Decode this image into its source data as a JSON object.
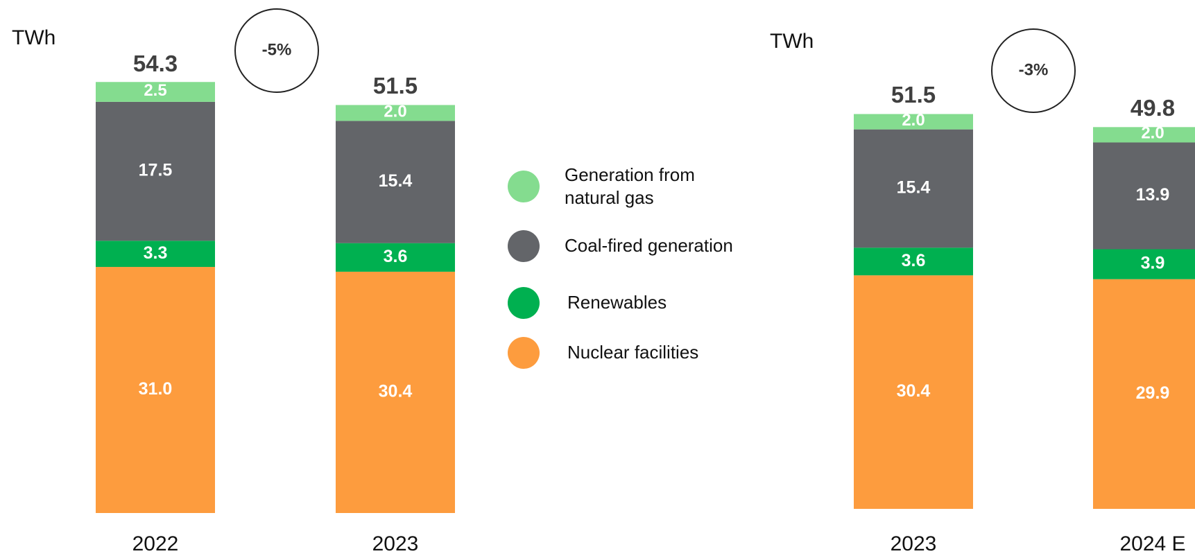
{
  "chart_data": [
    {
      "type": "stacked_bar",
      "unit_label": "TWh",
      "change": "-5%",
      "categories": [
        "2022",
        "2023"
      ],
      "totals": [
        54.3,
        51.5
      ],
      "series": [
        {
          "name": "Generation from natural gas",
          "color": "#84dc8f",
          "values": [
            2.5,
            2.0
          ],
          "value_labels": [
            "2.5",
            "2.0"
          ]
        },
        {
          "name": "Coal-fired generation",
          "color": "#636569",
          "values": [
            17.5,
            15.4
          ],
          "value_labels": [
            "17.5",
            "15.4"
          ]
        },
        {
          "name": "Renewables",
          "color": "#00b050",
          "values": [
            3.3,
            3.6
          ],
          "value_labels": [
            "3.3",
            "3.6"
          ]
        },
        {
          "name": "Nuclear facilities",
          "color": "#fd9c3e",
          "values": [
            31.0,
            30.4
          ],
          "value_labels": [
            "31.0",
            "30.4"
          ]
        }
      ]
    },
    {
      "type": "stacked_bar",
      "unit_label": "TWh",
      "change": "-3%",
      "categories": [
        "2023",
        "2024 E"
      ],
      "totals": [
        51.5,
        49.8
      ],
      "series": [
        {
          "color": "#84dc8f",
          "values": [
            2.0,
            2.0
          ],
          "value_labels": [
            "2.0",
            "2.0"
          ]
        },
        {
          "color": "#636569",
          "values": [
            15.4,
            13.9
          ],
          "value_labels": [
            "15.4",
            "13.9"
          ]
        },
        {
          "color": "#00b050",
          "values": [
            3.6,
            3.9
          ],
          "value_labels": [
            "3.6",
            "3.9"
          ]
        },
        {
          "color": "#fd9c3e",
          "values": [
            30.4,
            29.9
          ],
          "value_labels": [
            "30.4",
            "29.9"
          ]
        }
      ]
    }
  ]
}
